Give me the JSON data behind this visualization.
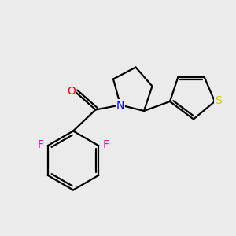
{
  "background_color": "#ebebeb",
  "bond_color": "#000000",
  "atom_colors": {
    "O": "#ff0000",
    "N": "#0000ff",
    "F": "#ff00aa",
    "S": "#cccc00"
  },
  "line_width": 1.6,
  "font_size": 10,
  "figsize": [
    3.0,
    3.0
  ],
  "dpi": 100,
  "xlim": [
    0,
    10
  ],
  "ylim": [
    0,
    10
  ]
}
